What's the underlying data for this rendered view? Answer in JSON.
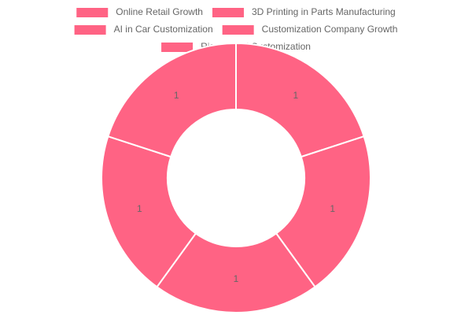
{
  "chart_data": {
    "type": "doughnut",
    "categories": [
      "Online Retail Growth",
      "3D Printing in Parts Manufacturing",
      "AI in Car Customization",
      "Customization Company Growth",
      "Rise of DIY Customization"
    ],
    "values": [
      1,
      1,
      1,
      1,
      1
    ],
    "color": "#ff6384",
    "legend": "top"
  }
}
